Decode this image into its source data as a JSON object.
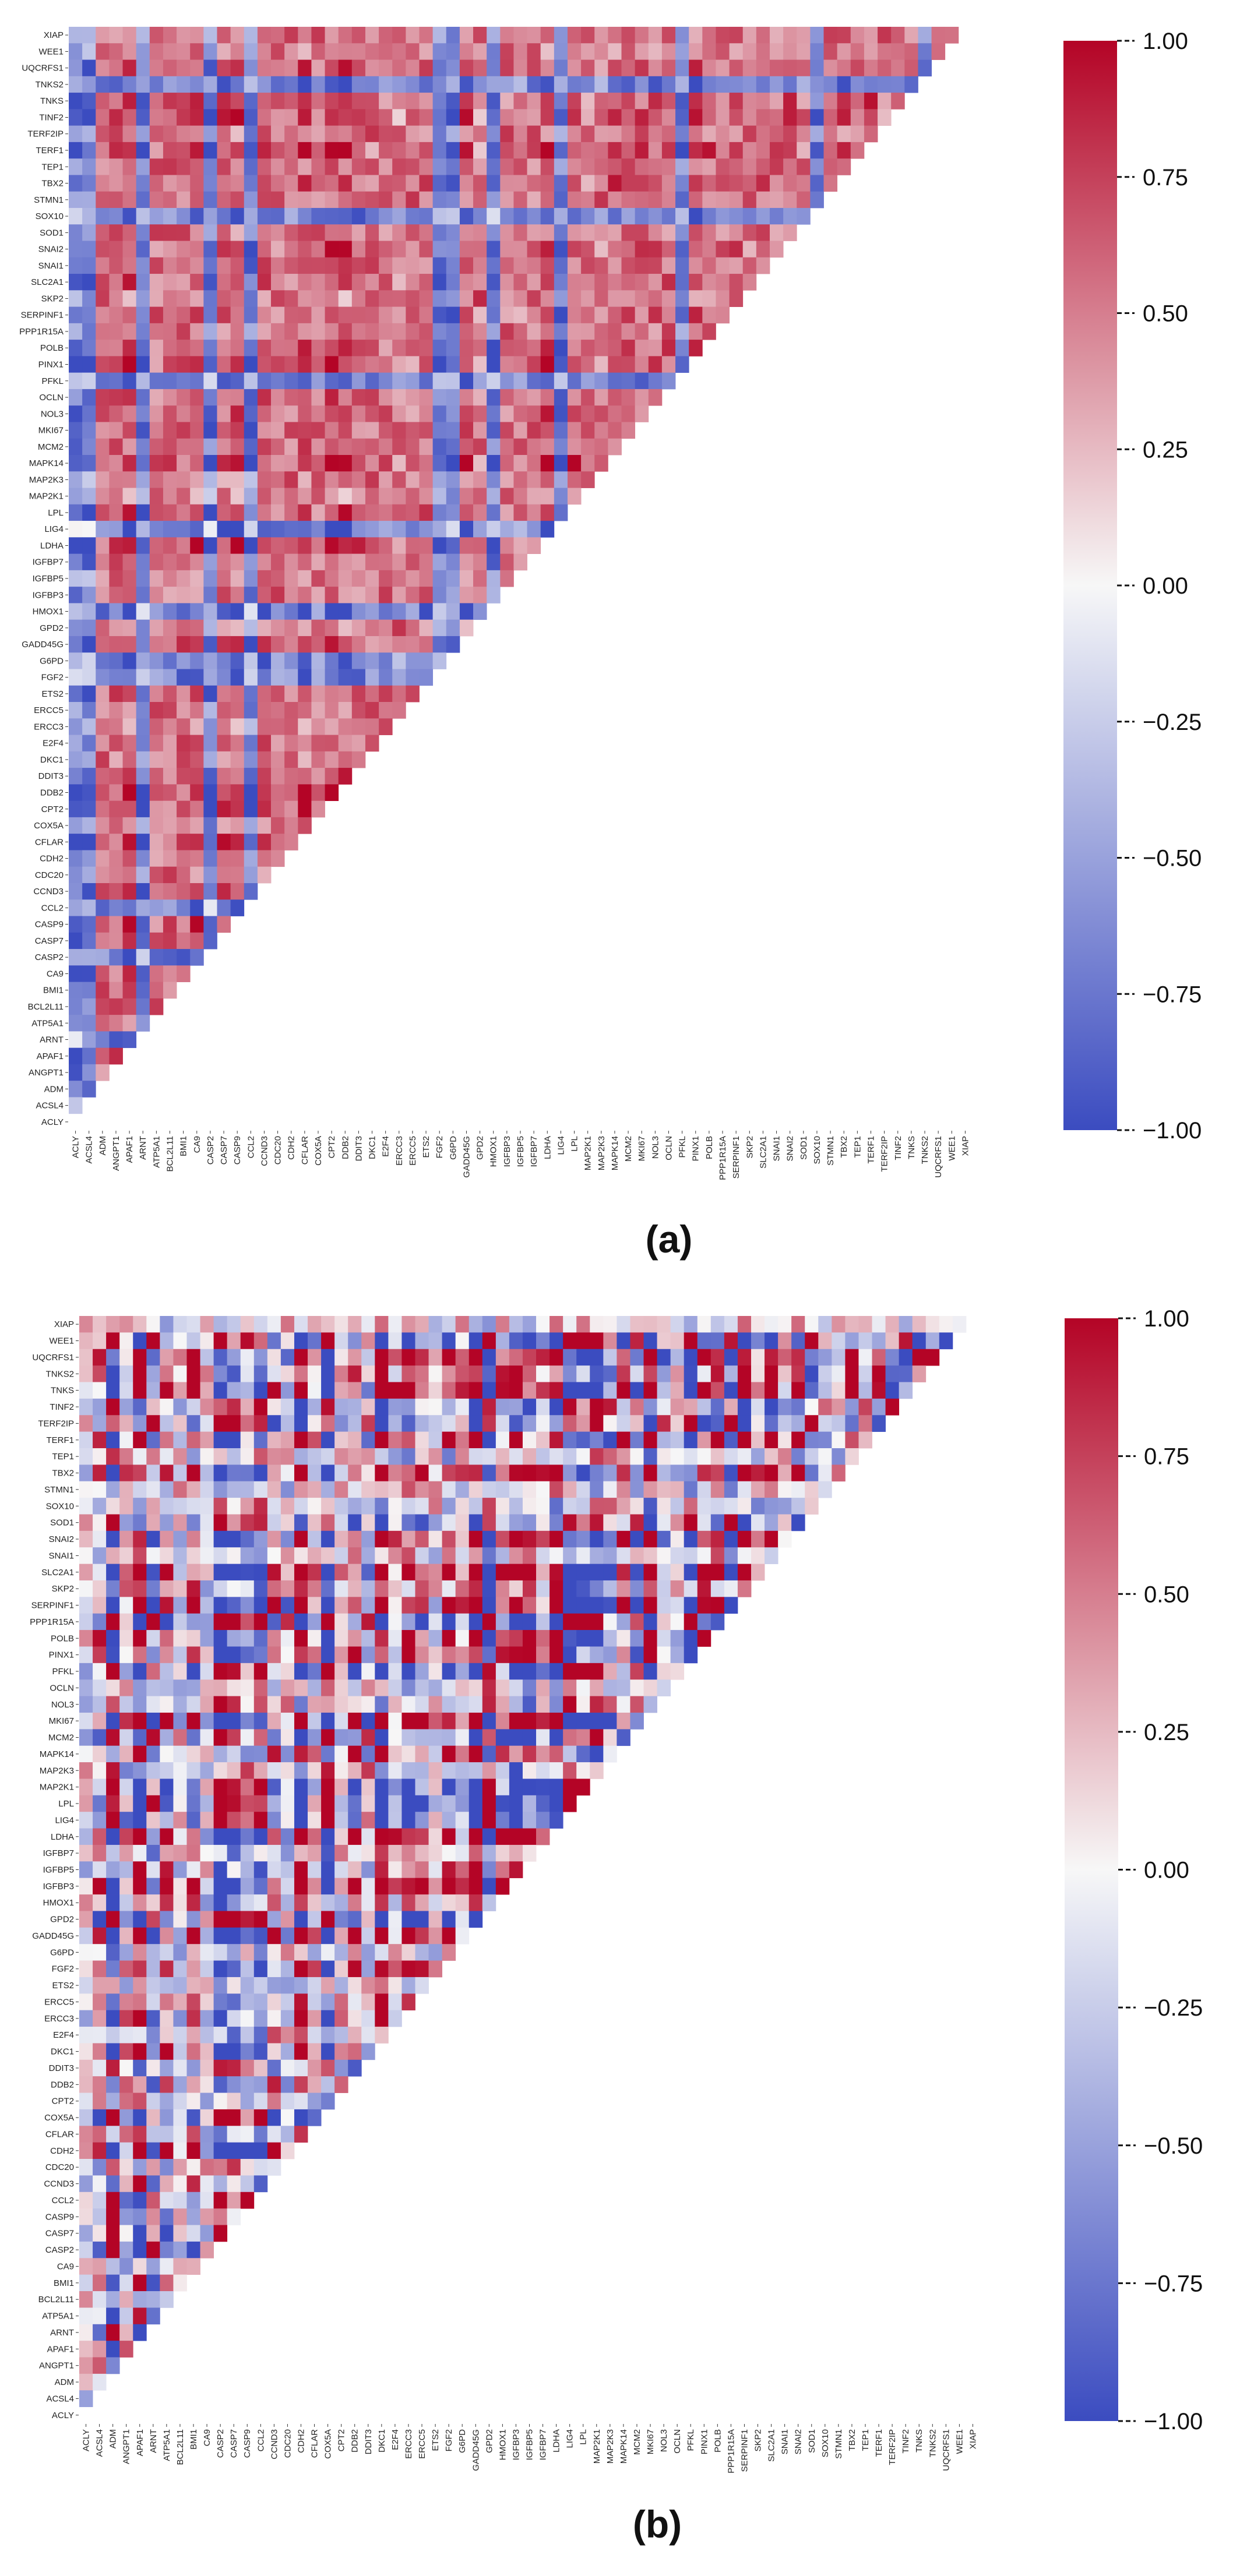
{
  "figure": {
    "panel_labels": [
      "(a)",
      "(b)"
    ]
  },
  "chart_data": [
    {
      "type": "heatmap",
      "title": "(a)",
      "shape": "lower-triangular correlation matrix",
      "x_tick_labels": [
        "ACLY",
        "ACSL4",
        "ADM",
        "ANGPT1",
        "APAF1",
        "ARNT",
        "ATP5A1",
        "BCL2L11",
        "BMI1",
        "CA9",
        "CASP2",
        "CASP7",
        "CASP9",
        "CCL2",
        "CCND3",
        "CDC20",
        "CDH2",
        "CFLAR",
        "COX5A",
        "CPT2",
        "DDB2",
        "DDIT3",
        "DKC1",
        "E2F4",
        "ERCC3",
        "ERCC5",
        "ETS2",
        "FGF2",
        "G6PD",
        "GADD45G",
        "GPD2",
        "HMOX1",
        "IGFBP3",
        "IGFBP5",
        "IGFBP7",
        "LDHA",
        "LIG4",
        "LPL",
        "MAP2K1",
        "MAP2K3",
        "MAPK14",
        "MCM2",
        "MKI67",
        "NOL3",
        "OCLN",
        "PFKL",
        "PINX1",
        "POLB",
        "PPP1R15A",
        "SERPINF1",
        "SKP2",
        "SLC2A1",
        "SNAI1",
        "SNAI2",
        "SOD1",
        "SOX10",
        "STMN1",
        "TBX2",
        "TEP1",
        "TERF1",
        "TERF2IP",
        "TINF2",
        "TNKS",
        "TNKS2",
        "UQCRFS1",
        "WEE1",
        "XIAP"
      ],
      "y_tick_labels": [
        "XIAP",
        "WEE1",
        "UQCRFS1",
        "TNKS2",
        "TNKS",
        "TINF2",
        "TERF2IP",
        "TERF1",
        "TEP1",
        "TBX2",
        "STMN1",
        "SOX10",
        "SOD1",
        "SNAI2",
        "SNAI1",
        "SLC2A1",
        "SKP2",
        "SERPINF1",
        "PPP1R15A",
        "POLB",
        "PINX1",
        "PFKL",
        "OCLN",
        "NOL3",
        "MKI67",
        "MCM2",
        "MAPK14",
        "MAP2K3",
        "MAP2K1",
        "LPL",
        "LIG4",
        "LDHA",
        "IGFBP7",
        "IGFBP5",
        "IGFBP3",
        "HMOX1",
        "GPD2",
        "GADD45G",
        "G6PD",
        "FGF2",
        "ETS2",
        "ERCC5",
        "ERCC3",
        "E2F4",
        "DKC1",
        "DDIT3",
        "DDB2",
        "CPT2",
        "COX5A",
        "CFLAR",
        "CDH2",
        "CDC20",
        "CCND3",
        "CCL2",
        "CASP9",
        "CASP7",
        "CASP2",
        "CA9",
        "BMI1",
        "BCL2L11",
        "ATP5A1",
        "ARNT",
        "APAF1",
        "ANGPT1",
        "ADM",
        "ACSL4",
        "ACLY"
      ],
      "value_range": [
        -1.0,
        1.0
      ],
      "pattern": "mostly strong positive correlations",
      "colorbar": {
        "ticks": [
          "1.00",
          "0.75",
          "0.50",
          "0.25",
          "0.00",
          "−0.25",
          "−0.50",
          "−0.75",
          "−1.00"
        ],
        "colormap": "coolwarm (blue → white → red)"
      }
    },
    {
      "type": "heatmap",
      "title": "(b)",
      "shape": "lower-triangular correlation matrix",
      "x_tick_labels": [
        "ACLY",
        "ACSL4",
        "ADM",
        "ANGPT1",
        "APAF1",
        "ARNT",
        "ATP5A1",
        "BCL2L11",
        "BMI1",
        "CA9",
        "CASP2",
        "CASP7",
        "CASP9",
        "CCL2",
        "CCND3",
        "CDC20",
        "CDH2",
        "CFLAR",
        "COX5A",
        "CPT2",
        "DDB2",
        "DDIT3",
        "DKC1",
        "E2F4",
        "ERCC3",
        "ERCC5",
        "ETS2",
        "FGF2",
        "G6PD",
        "GADD45G",
        "GPD2",
        "HMOX1",
        "IGFBP3",
        "IGFBP5",
        "IGFBP7",
        "LDHA",
        "LIG4",
        "LPL",
        "MAP2K1",
        "MAP2K3",
        "MAPK14",
        "MCM2",
        "MKI67",
        "NOL3",
        "OCLN",
        "PFKL",
        "PINX1",
        "POLB",
        "PPP1R15A",
        "SERPINF1",
        "SKP2",
        "SLC2A1",
        "SNAI1",
        "SNAI2",
        "SOD1",
        "SOX10",
        "STMN1",
        "TBX2",
        "TEP1",
        "TERF1",
        "TERF2IP",
        "TINF2",
        "TNKS",
        "TNKS2",
        "UQCRFS1",
        "WEE1",
        "XIAP"
      ],
      "y_tick_labels": [
        "XIAP",
        "WEE1",
        "UQCRFS1",
        "TNKS2",
        "TNKS",
        "TINF2",
        "TERF2IP",
        "TERF1",
        "TEP1",
        "TBX2",
        "STMN1",
        "SOX10",
        "SOD1",
        "SNAI2",
        "SNAI1",
        "SLC2A1",
        "SKP2",
        "SERPINF1",
        "PPP1R15A",
        "POLB",
        "PINX1",
        "PFKL",
        "OCLN",
        "NOL3",
        "MKI67",
        "MCM2",
        "MAPK14",
        "MAP2K3",
        "MAP2K1",
        "LPL",
        "LIG4",
        "LDHA",
        "IGFBP7",
        "IGFBP5",
        "IGFBP3",
        "HMOX1",
        "GPD2",
        "GADD45G",
        "G6PD",
        "FGF2",
        "ETS2",
        "ERCC5",
        "ERCC3",
        "E2F4",
        "DKC1",
        "DDIT3",
        "DDB2",
        "CPT2",
        "COX5A",
        "CFLAR",
        "CDH2",
        "CDC20",
        "CCND3",
        "CCL2",
        "CASP9",
        "CASP7",
        "CASP2",
        "CA9",
        "BMI1",
        "BCL2L11",
        "ATP5A1",
        "ARNT",
        "APAF1",
        "ANGPT1",
        "ADM",
        "ACSL4",
        "ACLY"
      ],
      "value_range": [
        -1.0,
        1.0
      ],
      "pattern": "mixed positive and negative correlations",
      "colorbar": {
        "ticks": [
          "1.00",
          "0.75",
          "0.50",
          "0.25",
          "0.00",
          "−0.25",
          "−0.50",
          "−0.75",
          "−1.00"
        ],
        "colormap": "coolwarm (blue → white → red)"
      }
    }
  ],
  "colors": {
    "positive": "#b40426",
    "neutral": "#f7f7f7",
    "negative": "#3b4cc0",
    "text": "#222222"
  }
}
